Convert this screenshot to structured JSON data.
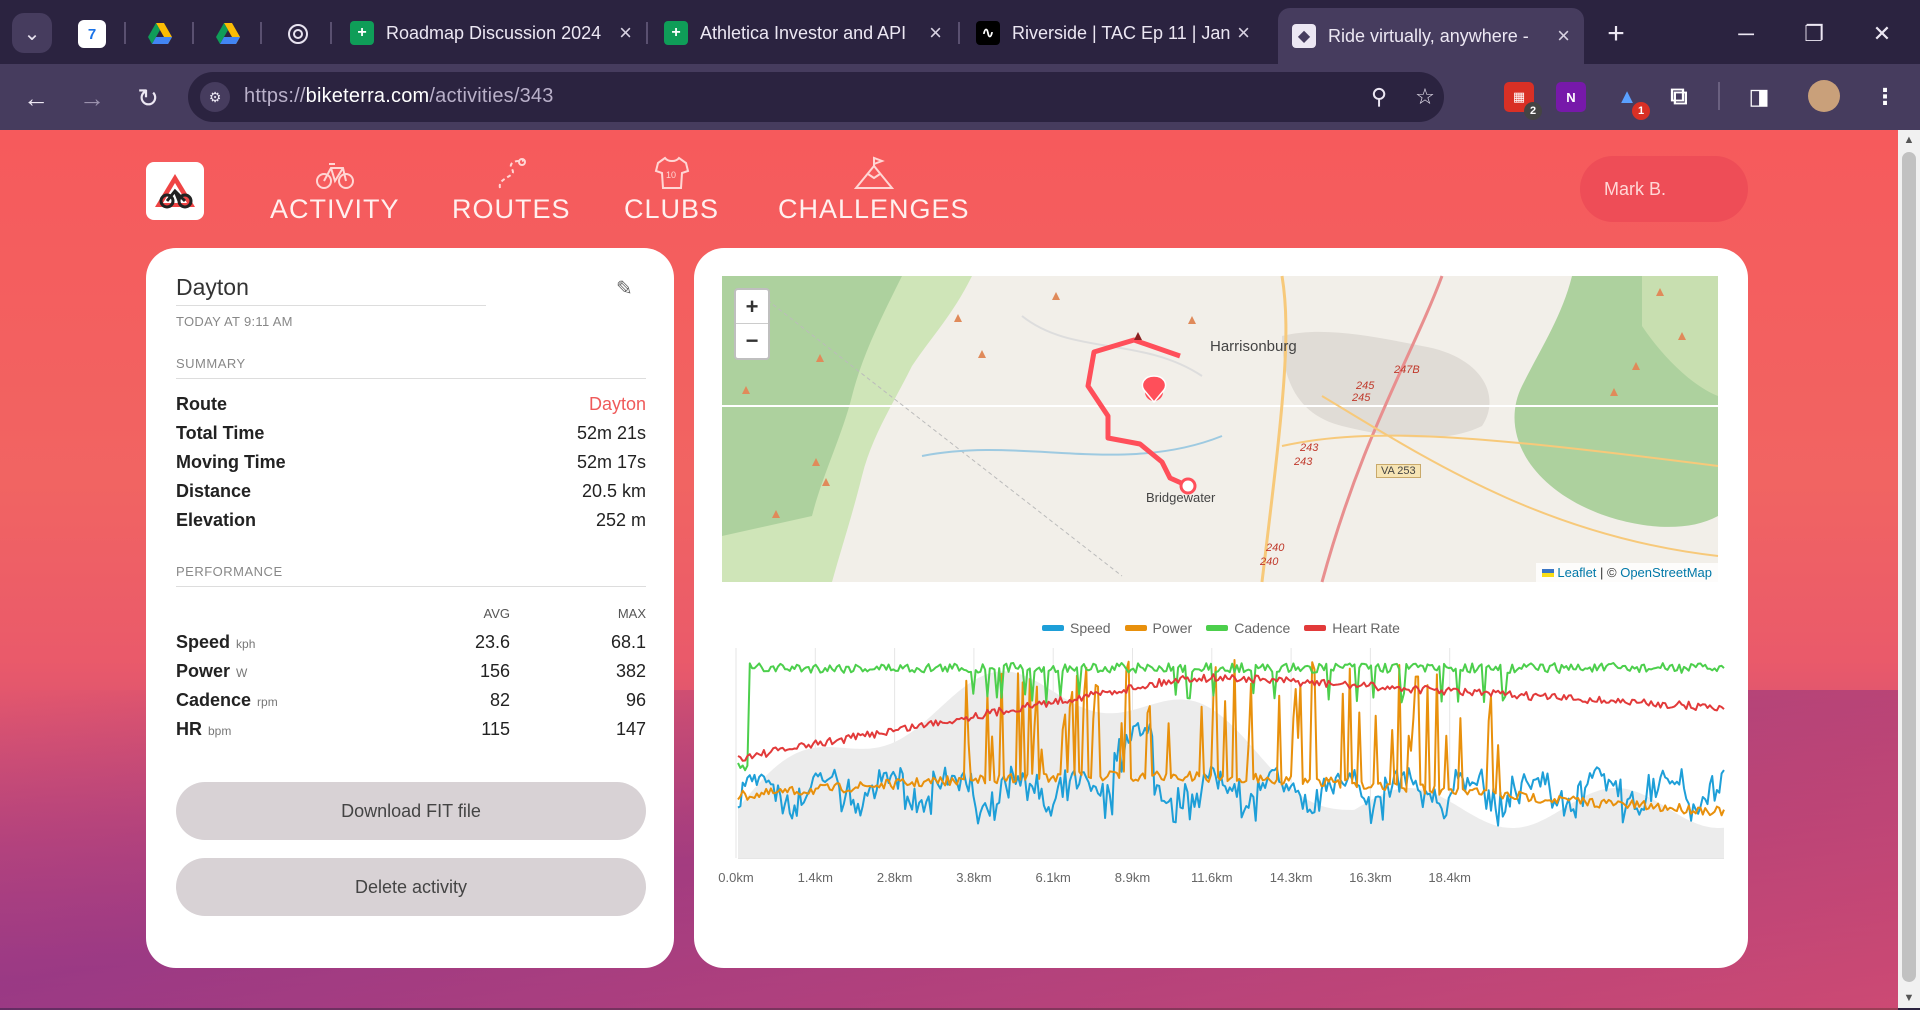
{
  "browser": {
    "tabs": [
      {
        "title": "Roadmap Discussion 2024",
        "icon": "sheets-icon"
      },
      {
        "title": "Athletica Investor and API",
        "icon": "sheets-icon"
      },
      {
        "title": "Riverside | TAC Ep 11 | Jan",
        "icon": "riverside-icon"
      },
      {
        "title": "Ride virtually, anywhere -",
        "icon": "biketerra-icon",
        "active": true
      }
    ],
    "pinned": [
      "calendar-icon",
      "drive-icon",
      "drive-icon",
      "chatgpt-icon"
    ],
    "calendar_day": "7",
    "url": {
      "scheme": "https://",
      "host": "biketerra.com",
      "path": "/activities/343"
    },
    "ext_badges": [
      "2",
      "1"
    ]
  },
  "site": {
    "nav": [
      {
        "label": "ACTIVITY",
        "icon": "bicycle-icon"
      },
      {
        "label": "ROUTES",
        "icon": "route-icon"
      },
      {
        "label": "CLUBS",
        "icon": "jersey-icon"
      },
      {
        "label": "CHALLENGES",
        "icon": "mountain-flag-icon"
      }
    ],
    "user": "Mark B."
  },
  "activity": {
    "title": "Dayton",
    "date": "TODAY AT 9:11 AM",
    "summary_label": "SUMMARY",
    "summary": [
      {
        "k": "Route",
        "v": "Dayton"
      },
      {
        "k": "Total Time",
        "v": "52m 21s"
      },
      {
        "k": "Moving Time",
        "v": "52m 17s"
      },
      {
        "k": "Distance",
        "v": "20.5 km"
      },
      {
        "k": "Elevation",
        "v": "252 m"
      }
    ],
    "performance_label": "PERFORMANCE",
    "perf_avg": "AVG",
    "perf_max": "MAX",
    "performance": [
      {
        "k": "Speed",
        "unit": "kph",
        "avg": "23.6",
        "max": "68.1"
      },
      {
        "k": "Power",
        "unit": "W",
        "avg": "156",
        "max": "382"
      },
      {
        "k": "Cadence",
        "unit": "rpm",
        "avg": "82",
        "max": "96"
      },
      {
        "k": "HR",
        "unit": "bpm",
        "avg": "115",
        "max": "147"
      }
    ],
    "download_label": "Download FIT file",
    "delete_label": "Delete activity"
  },
  "map": {
    "zoom_in": "+",
    "zoom_out": "−",
    "labels": [
      "Harrisonburg",
      "Bridgewater",
      "VA 253",
      "247B",
      "245",
      "245",
      "243",
      "243",
      "240",
      "240"
    ],
    "attribution_leaflet": "Leaflet",
    "attribution_sep": " | © ",
    "attribution_osm": "OpenStreetMap"
  },
  "chart_data": {
    "type": "line",
    "series": [
      {
        "name": "Speed",
        "color": "#1e9fd8"
      },
      {
        "name": "Power",
        "color": "#e8900c"
      },
      {
        "name": "Cadence",
        "color": "#4ccf4c"
      },
      {
        "name": "Heart Rate",
        "color": "#e23a3a"
      }
    ],
    "x_ticks": [
      "0.0km",
      "1.4km",
      "2.8km",
      "3.8km",
      "6.1km",
      "8.9km",
      "11.6km",
      "14.3km",
      "16.3km",
      "18.4km"
    ],
    "grid": true,
    "legend": "top-center"
  }
}
